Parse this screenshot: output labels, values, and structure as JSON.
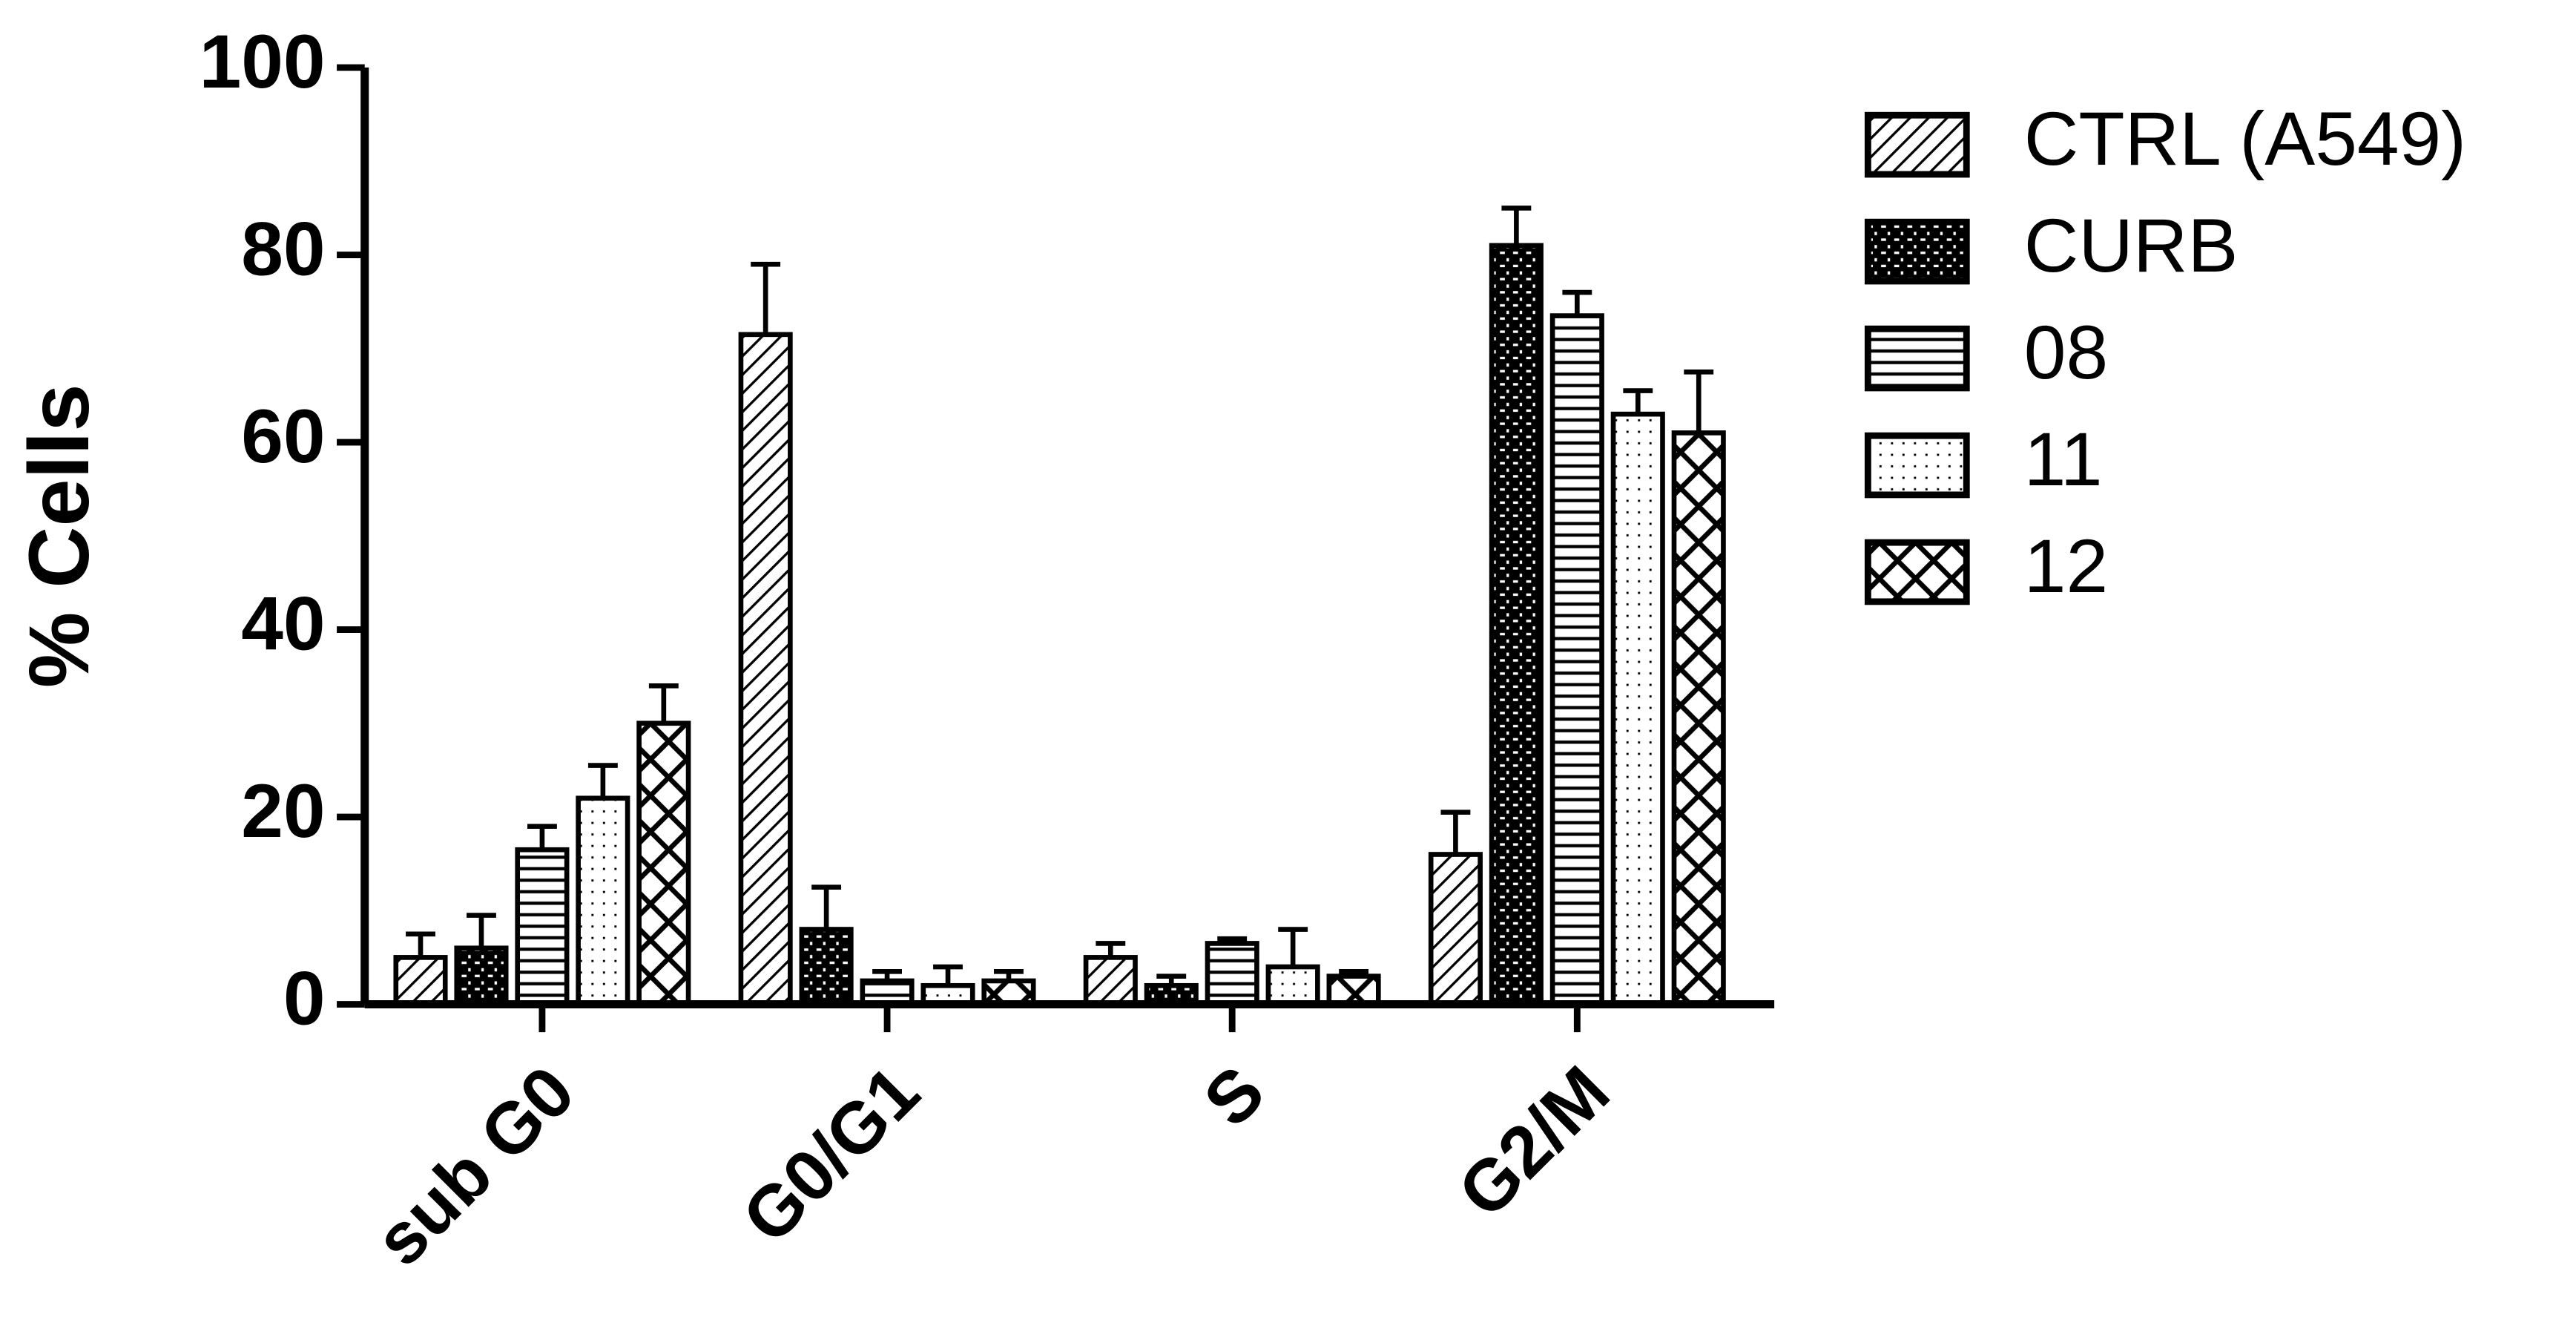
{
  "chart_data": {
    "type": "bar",
    "y_label": "% Cells",
    "categories": [
      "sub G0",
      "G0/G1",
      "S",
      "G2/M"
    ],
    "series": [
      {
        "name": "CTRL (A549)",
        "color": "#000000",
        "pattern": "diagonal",
        "values": [
          5,
          71.5,
          5,
          16
        ],
        "errors": [
          2.5,
          7.5,
          1.5,
          4.5
        ]
      },
      {
        "name": "CURB",
        "color": "#000000",
        "pattern": "dashes",
        "values": [
          6,
          8,
          2,
          81
        ],
        "errors": [
          3.5,
          4.5,
          1,
          4
        ]
      },
      {
        "name": "08",
        "color": "#000000",
        "pattern": "horizontal",
        "values": [
          16.5,
          2.5,
          6.5,
          73.5
        ],
        "errors": [
          2.5,
          1,
          0.5,
          2.5
        ]
      },
      {
        "name": "11",
        "color": "#000000",
        "pattern": "dots",
        "values": [
          22,
          2,
          4,
          63
        ],
        "errors": [
          3.5,
          2,
          4,
          2.5
        ]
      },
      {
        "name": "12",
        "color": "#000000",
        "pattern": "cross",
        "values": [
          30,
          2.5,
          3,
          61
        ],
        "errors": [
          4,
          1,
          0.5,
          6.5
        ]
      }
    ],
    "ylim": [
      0,
      100
    ],
    "yticks": [
      0,
      20,
      40,
      60,
      80,
      100
    ],
    "grid": false,
    "legend": "right"
  }
}
